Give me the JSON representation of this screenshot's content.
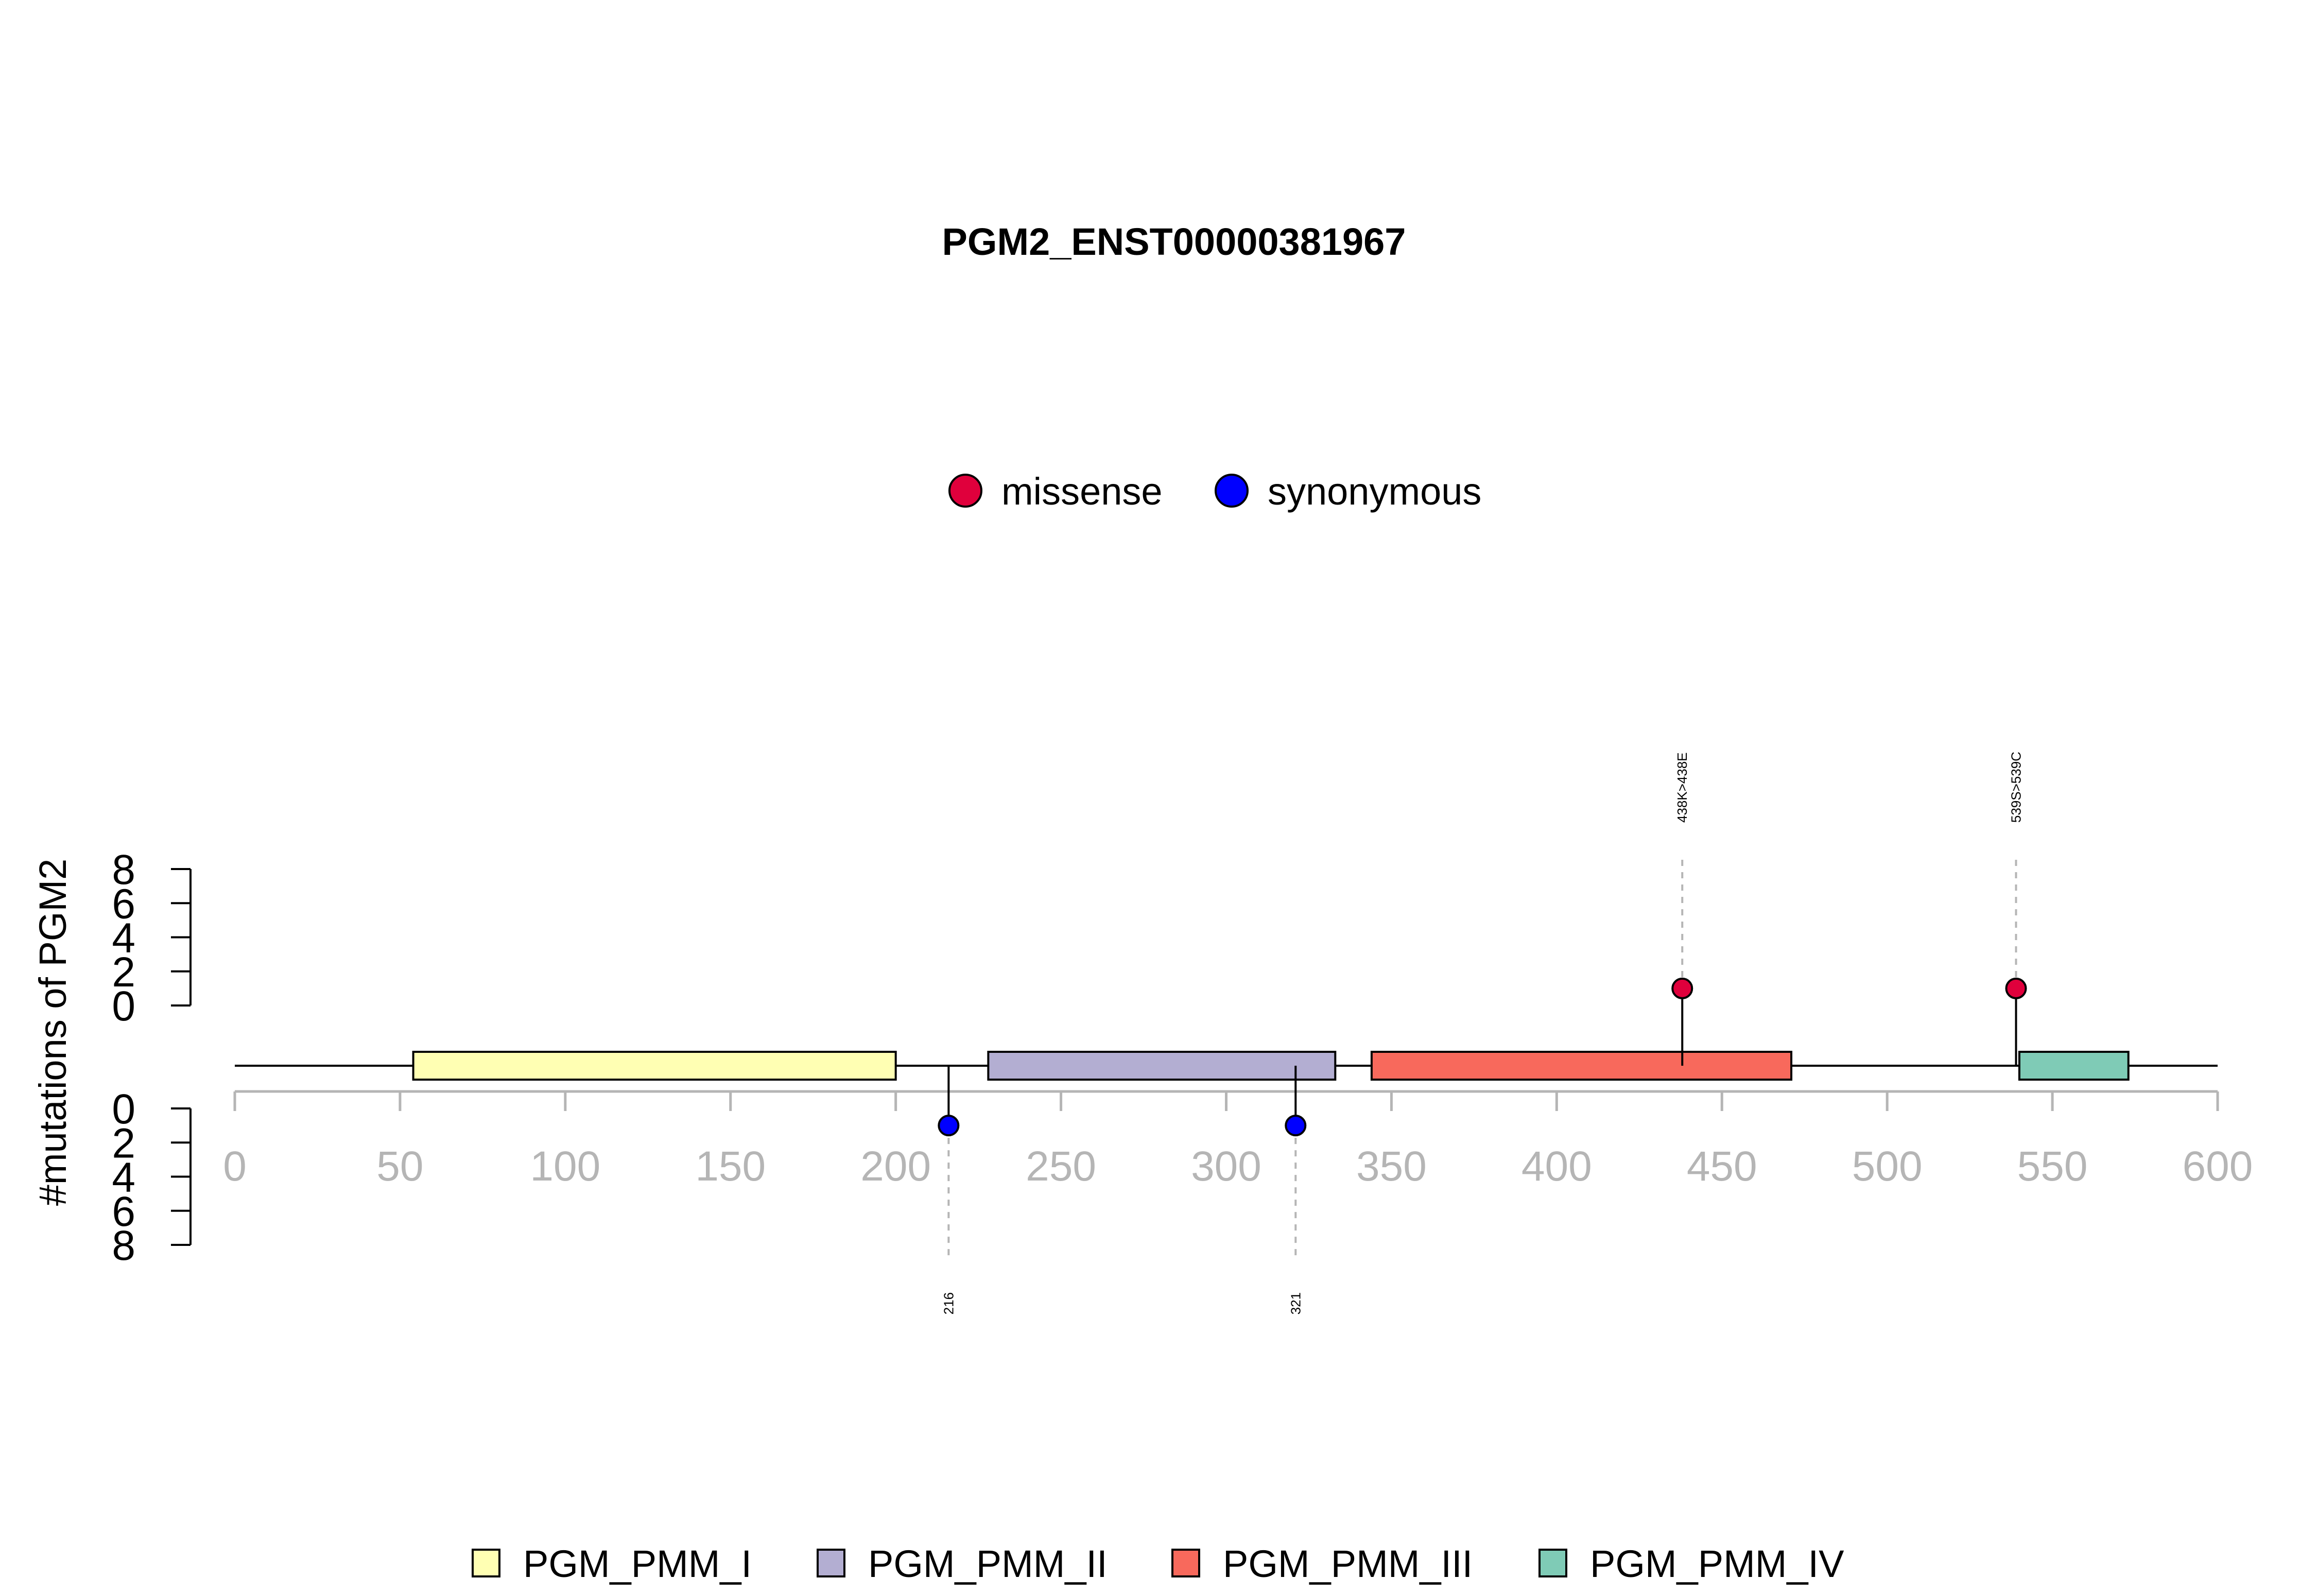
{
  "chart_data": {
    "type": "lollipop",
    "title": "PGM2_ENST00000381967",
    "ylabel": "#mutations of PGM2",
    "xlim": [
      0,
      600
    ],
    "x_ticks": [
      0,
      50,
      100,
      150,
      200,
      250,
      300,
      350,
      400,
      450,
      500,
      550,
      600
    ],
    "y_ticks": [
      0,
      2,
      4,
      6,
      8
    ],
    "protein_length": 600,
    "mutation_legend": [
      {
        "name": "missense",
        "color": "#e0003c"
      },
      {
        "name": "synonymous",
        "color": "#0000ff"
      }
    ],
    "domains": [
      {
        "name": "PGM_PMM_I",
        "start": 54,
        "end": 200,
        "color": "#ffffb3"
      },
      {
        "name": "PGM_PMM_II",
        "start": 228,
        "end": 333,
        "color": "#b3aed2"
      },
      {
        "name": "PGM_PMM_III",
        "start": 344,
        "end": 471,
        "color": "#f8695c"
      },
      {
        "name": "PGM_PMM_IV",
        "start": 540,
        "end": 573,
        "color": "#7fcbb6"
      }
    ],
    "mutations": [
      {
        "position": 216,
        "count": 1,
        "type": "synonymous",
        "label": "216",
        "side": "bottom"
      },
      {
        "position": 321,
        "count": 1,
        "type": "synonymous",
        "label": "321",
        "side": "bottom"
      },
      {
        "position": 438,
        "count": 1,
        "type": "missense",
        "label": "438K>438E",
        "side": "top"
      },
      {
        "position": 539,
        "count": 1,
        "type": "missense",
        "label": "539S>539C",
        "side": "top"
      }
    ]
  }
}
